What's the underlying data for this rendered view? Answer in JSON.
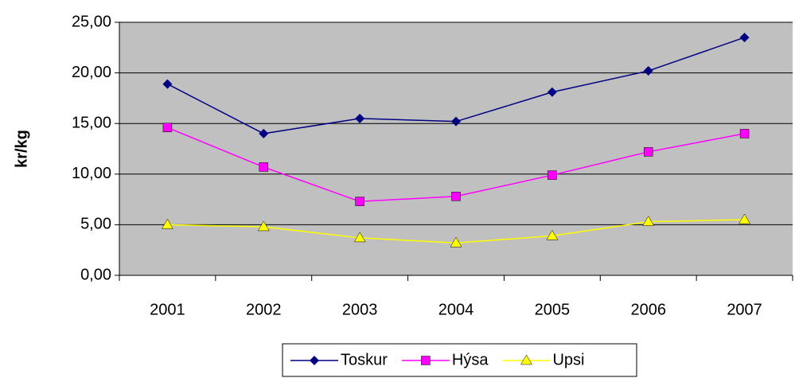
{
  "chart_data": {
    "type": "line",
    "y_label": "kr/kg",
    "categories": [
      "2001",
      "2002",
      "2003",
      "2004",
      "2005",
      "2006",
      "2007"
    ],
    "series": [
      {
        "name": "Toskur",
        "color": "#000080",
        "marker": "diamond",
        "values": [
          18.9,
          14.0,
          15.5,
          15.2,
          18.1,
          20.2,
          23.5
        ]
      },
      {
        "name": "Hýsa",
        "color": "#ff00ff",
        "marker": "square",
        "values": [
          14.6,
          10.7,
          7.3,
          7.8,
          9.9,
          12.2,
          14.0
        ]
      },
      {
        "name": "Upsi",
        "color": "#ffff00",
        "marker": "triangle",
        "values": [
          5.0,
          4.8,
          3.7,
          3.2,
          3.9,
          5.3,
          5.5
        ]
      }
    ],
    "ylim": [
      0,
      25
    ],
    "yticks": [
      {
        "value": 0,
        "label": "0,00"
      },
      {
        "value": 5,
        "label": "5,00"
      },
      {
        "value": 10,
        "label": "10,00"
      },
      {
        "value": 15,
        "label": "15,00"
      },
      {
        "value": 20,
        "label": "20,00"
      },
      {
        "value": 25,
        "label": "25,00"
      }
    ],
    "grid": true,
    "legend": "bottom"
  }
}
